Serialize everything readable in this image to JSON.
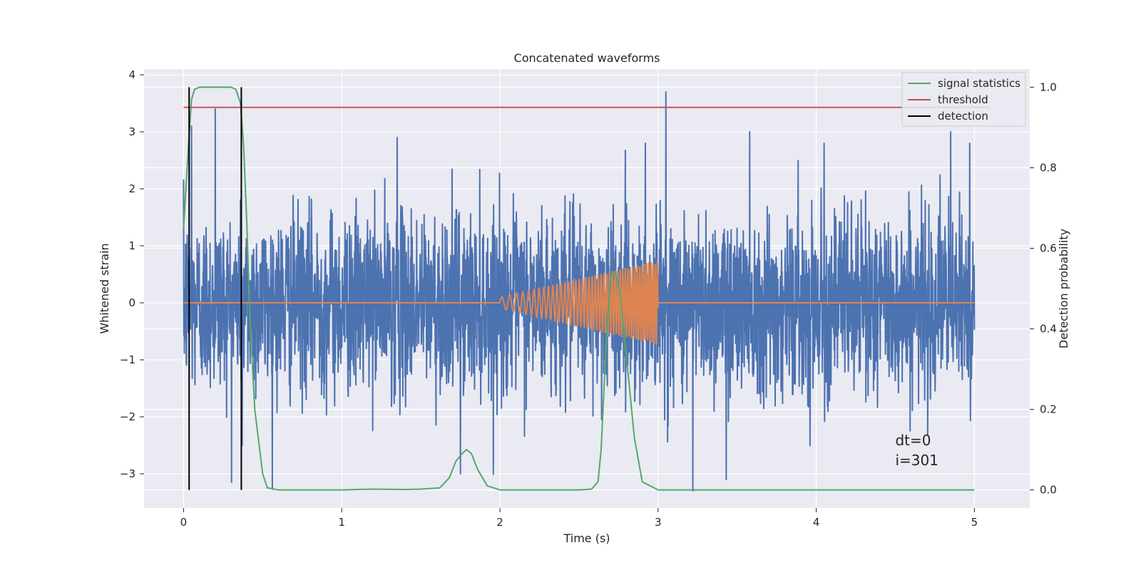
{
  "chart_data": {
    "type": "line",
    "title": "Concatenated waveforms",
    "xlabel": "Time (s)",
    "ylabel": "Whitened strain",
    "ylabel_right": "Detection probability",
    "xlim": [
      -0.25,
      5.35
    ],
    "ylim": [
      -3.6,
      4.1
    ],
    "ylim_right": [
      -0.045,
      1.045
    ],
    "xticks": [
      0,
      1,
      2,
      3,
      4,
      5
    ],
    "xtick_labels": [
      "0",
      "1",
      "2",
      "3",
      "4",
      "5"
    ],
    "yticks": [
      -3,
      -2,
      -1,
      0,
      1,
      2,
      3,
      4
    ],
    "ytick_labels": [
      "−3",
      "−2",
      "−1",
      "0",
      "1",
      "2",
      "3",
      "4"
    ],
    "yticks_right": [
      0.0,
      0.2,
      0.4,
      0.6,
      0.8,
      1.0
    ],
    "ytick_right_labels": [
      "0.0",
      "0.2",
      "0.4",
      "0.6",
      "0.8",
      "1.0"
    ],
    "grid": true,
    "legend_position": "top-right",
    "colors": {
      "background": "#eaeaf2",
      "noise": "#4c72b0",
      "injection": "#dd8452",
      "signal": "#55a868",
      "threshold": "#c44e52",
      "detection": "#000000"
    },
    "series": [
      {
        "name": "signal statistics",
        "axis": "right",
        "x": [
          0.0,
          0.03,
          0.05,
          0.07,
          0.1,
          0.15,
          0.2,
          0.3,
          0.33,
          0.36,
          0.38,
          0.4,
          0.42,
          0.45,
          0.5,
          0.53,
          0.6,
          0.8,
          1.0,
          1.2,
          1.4,
          1.5,
          1.62,
          1.68,
          1.72,
          1.76,
          1.79,
          1.82,
          1.86,
          1.92,
          2.0,
          2.2,
          2.5,
          2.58,
          2.62,
          2.64,
          2.67,
          2.7,
          2.73,
          2.76,
          2.8,
          2.85,
          2.9,
          3.0,
          3.5,
          4.0,
          4.5,
          5.0
        ],
        "y": [
          0.65,
          0.85,
          0.97,
          0.995,
          1.0,
          1.0,
          1.0,
          1.0,
          0.995,
          0.96,
          0.85,
          0.66,
          0.42,
          0.2,
          0.04,
          0.005,
          0.0,
          0.0,
          0.0,
          0.002,
          0.001,
          0.002,
          0.005,
          0.03,
          0.07,
          0.09,
          0.1,
          0.09,
          0.05,
          0.01,
          0.0,
          0.0,
          0.0,
          0.002,
          0.02,
          0.1,
          0.35,
          0.53,
          0.54,
          0.49,
          0.33,
          0.13,
          0.02,
          0.0,
          0.0,
          0.0,
          0.0,
          0.0
        ]
      },
      {
        "name": "threshold",
        "axis": "right",
        "x": [
          0.0,
          5.1
        ],
        "y": [
          0.95,
          0.95
        ]
      },
      {
        "name": "detection",
        "axis": "right",
        "x": [
          0.035,
          0.365
        ],
        "y": [
          0.0,
          1.0
        ]
      },
      {
        "name": "",
        "axis": "left",
        "kind": "noise",
        "x": [
          0,
          5
        ],
        "envelope_p95": 2.0,
        "peak_examples": {
          "x": [
            0.2,
            0.05,
            3.05,
            1.35,
            2.92,
            4.05,
            3.58,
            4.85,
            4.97,
            3.22,
            3.43,
            1.75,
            0.37
          ],
          "y": [
            3.4,
            3.1,
            3.7,
            2.9,
            2.8,
            2.8,
            3.0,
            3.0,
            2.8,
            -3.3,
            -3.1,
            -3.0,
            -2.5
          ]
        }
      },
      {
        "name": "",
        "axis": "left",
        "kind": "chirp",
        "x": [
          0,
          2,
          3,
          5
        ],
        "amplitude": [
          0,
          0.1,
          0.75,
          0
        ],
        "frequency_hz": [
          0,
          18,
          75,
          0
        ]
      }
    ],
    "legend": [
      "signal statistics",
      "threshold",
      "detection"
    ],
    "annotations": [
      "dt=0",
      "i=301"
    ]
  }
}
